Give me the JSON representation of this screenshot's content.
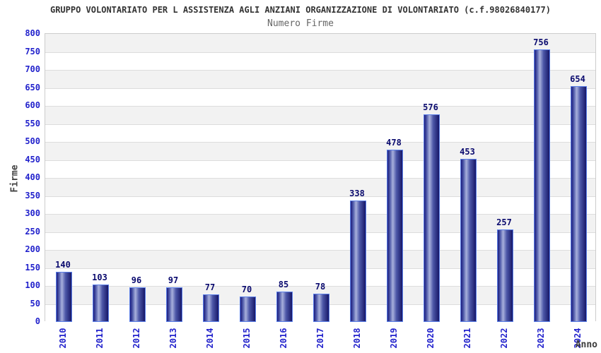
{
  "header": {
    "title": "GRUPPO VOLONTARIATO PER L ASSISTENZA AGLI ANZIANI ORGANIZZAZIONE DI VOLONTARIATO (c.f.98026840177)",
    "subtitle": "Numero Firme"
  },
  "chart_data": {
    "type": "bar",
    "title": "GRUPPO VOLONTARIATO PER L ASSISTENZA AGLI ANZIANI ORGANIZZAZIONE DI VOLONTARIATO (c.f.98026840177)",
    "subtitle": "Numero Firme",
    "xlabel": "Anno",
    "ylabel": "Firme",
    "categories": [
      "2010",
      "2011",
      "2012",
      "2013",
      "2014",
      "2015",
      "2016",
      "2017",
      "2018",
      "2019",
      "2020",
      "2021",
      "2022",
      "2023",
      "2024"
    ],
    "values": [
      140,
      103,
      96,
      97,
      77,
      70,
      85,
      78,
      338,
      478,
      576,
      453,
      257,
      756,
      654
    ],
    "ylim": [
      0,
      800
    ],
    "ytick_step": 50,
    "grid": true,
    "legend": "none",
    "value_labels_shown": true,
    "colors": {
      "tick_label": "#2222cc",
      "value_label": "#0a0a6e",
      "band_shaded": "#f2f2f2",
      "band_plain": "#ffffff",
      "grid_line": "#dddddd",
      "plot_border": "#cccccc",
      "bar_border": "#5b7fe8",
      "bar_gradient": [
        {
          "color": "#1c1c7e",
          "pos": 0
        },
        {
          "color": "#4d58a8",
          "pos": 16
        },
        {
          "color": "#a8b0dc",
          "pos": 36
        },
        {
          "color": "#4d58a8",
          "pos": 60
        },
        {
          "color": "#171768",
          "pos": 100
        }
      ]
    }
  }
}
